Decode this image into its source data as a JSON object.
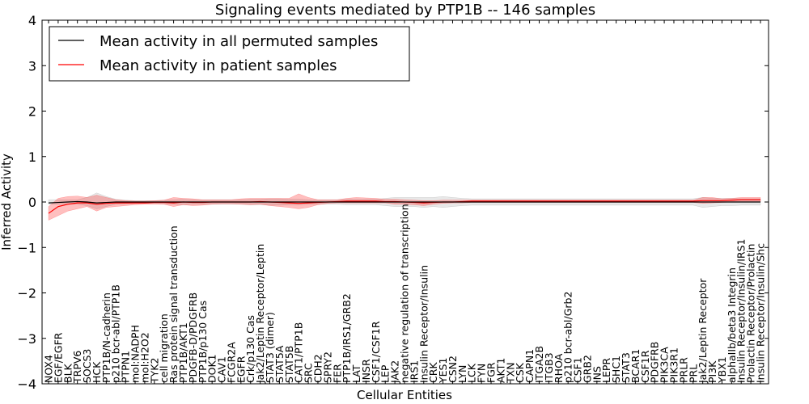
{
  "chart_data": {
    "type": "line",
    "title": "Signaling events mediated by PTP1B -- 146 samples",
    "xlabel": "Cellular Entities",
    "ylabel": "Inferred Activity",
    "ylim": [
      -4,
      4
    ],
    "yticks": [
      -4,
      -3,
      -2,
      -1,
      0,
      1,
      2,
      3,
      4
    ],
    "grid": false,
    "legend_position": "top-left",
    "categories": [
      "NOX4",
      "EGF/EGFR",
      "BLK",
      "TRPV6",
      "SOCS3",
      "HCK",
      "PTP1B/N-cadherin",
      "p210 bcr-abl/PTP1B",
      "PTPN1",
      "mol:NADPH",
      "mol:H2O2",
      "TYK2",
      "cell migration",
      "Ras protein signal transduction",
      "PTP1B/AKT1",
      "PDGFB-D/PDGFRB",
      "PTP1B/p130 Cas",
      "DOK1",
      "CAV1",
      "FCGR2A",
      "EGFR",
      "Crk/p130 Cas",
      "Jak2/Leptin Receptor/Leptin",
      "STAT3 (dimer)",
      "STAT5A",
      "STAT5B",
      "CAT1/PTP1B",
      "SRC",
      "CDH2",
      "SPRY2",
      "FER",
      "PTP1B/IRS1/GRB2",
      "LAT",
      "INSR",
      "CSF1/CSF1R",
      "LEP",
      "JAK2",
      "negative regulation of transcription",
      "IRS1",
      "Insulin Receptor/Insulin",
      "CRK",
      "YES1",
      "CSN2",
      "LYN",
      "LCK",
      "FYN",
      "FGR",
      "AKT1",
      "TXN",
      "CSK",
      "CAPN1",
      "ITGA2B",
      "ITGB3",
      "RHOA",
      "p210 bcr-abl/Grb2",
      "CSF1",
      "GRB2",
      "INS",
      "LEPR",
      "SHC1",
      "STAT3",
      "BCAR1",
      "CSF1R",
      "PDGFRB",
      "PIK3CA",
      "PIK3R1",
      "PRLR",
      "PRL",
      "Jak2/Leptin Receptor",
      "PI3K",
      "YBX1",
      "alphaIIb/beta3 Integrin",
      "Insulin Receptor/Insulin/IRS1",
      "Prolactin Receptor/Prolactin",
      "Insulin Receptor/Insulin/Shc"
    ],
    "series": [
      {
        "name": "Mean activity in all permuted samples",
        "color": "#000000",
        "values": [
          -0.02,
          -0.01,
          0.0,
          0.01,
          0.0,
          -0.02,
          -0.01,
          0.0,
          0.0,
          0.0,
          0.0,
          0.0,
          0.0,
          0.0,
          0.0,
          0.0,
          0.0,
          0.0,
          0.0,
          0.0,
          0.0,
          0.0,
          0.0,
          0.0,
          0.0,
          0.0,
          0.0,
          0.0,
          0.0,
          0.0,
          0.0,
          0.0,
          0.0,
          0.0,
          0.0,
          0.0,
          0.0,
          0.0,
          0.0,
          0.0,
          0.0,
          0.0,
          0.0,
          0.0,
          0.0,
          0.0,
          0.0,
          0.0,
          0.0,
          0.0,
          0.0,
          0.0,
          0.0,
          0.0,
          0.0,
          0.0,
          0.0,
          0.0,
          0.0,
          0.0,
          0.0,
          0.0,
          0.0,
          0.0,
          0.0,
          0.0,
          0.0,
          0.0,
          0.0,
          0.0,
          0.0,
          0.0,
          0.0,
          0.0,
          0.0
        ],
        "band_lower": [
          -0.05,
          -0.05,
          -0.05,
          -0.05,
          -0.08,
          -0.15,
          -0.1,
          -0.05,
          -0.04,
          -0.03,
          -0.03,
          -0.03,
          -0.04,
          -0.05,
          -0.06,
          -0.05,
          -0.05,
          -0.05,
          -0.05,
          -0.05,
          -0.05,
          -0.06,
          -0.06,
          -0.07,
          -0.07,
          -0.06,
          -0.06,
          -0.05,
          -0.05,
          -0.05,
          -0.05,
          -0.06,
          -0.06,
          -0.06,
          -0.06,
          -0.08,
          -0.1,
          -0.1,
          -0.1,
          -0.12,
          -0.1,
          -0.12,
          -0.1,
          -0.08,
          -0.07,
          -0.07,
          -0.07,
          -0.07,
          -0.07,
          -0.07,
          -0.07,
          -0.07,
          -0.07,
          -0.07,
          -0.07,
          -0.07,
          -0.07,
          -0.07,
          -0.07,
          -0.07,
          -0.07,
          -0.07,
          -0.07,
          -0.07,
          -0.07,
          -0.07,
          -0.07,
          -0.07,
          -0.12,
          -0.1,
          -0.08,
          -0.08,
          -0.07,
          -0.07,
          -0.07
        ],
        "band_upper": [
          0.05,
          0.05,
          0.05,
          0.05,
          0.1,
          0.2,
          0.12,
          0.06,
          0.04,
          0.03,
          0.03,
          0.03,
          0.04,
          0.05,
          0.06,
          0.05,
          0.05,
          0.05,
          0.05,
          0.05,
          0.05,
          0.06,
          0.06,
          0.07,
          0.07,
          0.06,
          0.06,
          0.05,
          0.05,
          0.05,
          0.05,
          0.06,
          0.06,
          0.06,
          0.06,
          0.08,
          0.1,
          0.1,
          0.1,
          0.1,
          0.1,
          0.12,
          0.1,
          0.08,
          0.07,
          0.07,
          0.07,
          0.07,
          0.07,
          0.07,
          0.07,
          0.07,
          0.07,
          0.07,
          0.07,
          0.07,
          0.07,
          0.07,
          0.07,
          0.07,
          0.07,
          0.07,
          0.07,
          0.07,
          0.07,
          0.07,
          0.07,
          0.07,
          0.1,
          0.08,
          0.08,
          0.08,
          0.07,
          0.07,
          0.07
        ]
      },
      {
        "name": "Mean activity in patient samples",
        "color": "#ff0000",
        "values": [
          -0.25,
          -0.1,
          -0.05,
          -0.02,
          -0.02,
          -0.05,
          -0.03,
          -0.02,
          -0.02,
          -0.02,
          -0.02,
          -0.01,
          -0.01,
          -0.02,
          0.0,
          -0.01,
          -0.01,
          0.0,
          0.0,
          0.0,
          0.0,
          0.0,
          0.01,
          0.0,
          -0.01,
          -0.02,
          -0.03,
          -0.02,
          -0.01,
          0.0,
          0.01,
          0.02,
          0.02,
          0.02,
          0.02,
          0.01,
          0.01,
          0.0,
          -0.01,
          -0.02,
          -0.01,
          0.0,
          0.0,
          0.01,
          0.02,
          0.02,
          0.02,
          0.02,
          0.02,
          0.02,
          0.02,
          0.02,
          0.02,
          0.02,
          0.02,
          0.02,
          0.02,
          0.02,
          0.02,
          0.02,
          0.02,
          0.02,
          0.02,
          0.02,
          0.02,
          0.02,
          0.02,
          0.02,
          0.03,
          0.03,
          0.03,
          0.04,
          0.05,
          0.05,
          0.05
        ],
        "band_lower": [
          -0.4,
          -0.3,
          -0.2,
          -0.15,
          -0.1,
          -0.2,
          -0.12,
          -0.1,
          -0.08,
          -0.06,
          -0.05,
          -0.05,
          -0.05,
          -0.1,
          -0.06,
          -0.08,
          -0.07,
          -0.05,
          -0.04,
          -0.04,
          -0.05,
          -0.06,
          -0.05,
          -0.08,
          -0.1,
          -0.12,
          -0.15,
          -0.12,
          -0.06,
          -0.03,
          -0.02,
          -0.02,
          -0.02,
          -0.02,
          -0.02,
          -0.02,
          -0.05,
          -0.05,
          -0.06,
          -0.08,
          -0.05,
          -0.03,
          -0.02,
          -0.02,
          -0.01,
          -0.01,
          -0.01,
          -0.01,
          -0.01,
          -0.01,
          -0.01,
          -0.01,
          -0.01,
          -0.01,
          -0.01,
          -0.01,
          -0.01,
          -0.01,
          -0.01,
          -0.01,
          -0.01,
          -0.01,
          -0.01,
          -0.01,
          -0.01,
          -0.01,
          -0.01,
          -0.01,
          -0.03,
          -0.02,
          -0.01,
          0.0,
          0.0,
          0.0,
          0.0
        ],
        "band_upper": [
          -0.1,
          0.08,
          0.12,
          0.13,
          0.1,
          0.15,
          0.1,
          0.05,
          0.03,
          0.02,
          0.02,
          0.03,
          0.04,
          0.1,
          0.08,
          0.07,
          0.05,
          0.05,
          0.05,
          0.05,
          0.07,
          0.08,
          0.08,
          0.08,
          0.08,
          0.08,
          0.18,
          0.1,
          0.05,
          0.05,
          0.05,
          0.08,
          0.1,
          0.09,
          0.08,
          0.06,
          0.06,
          0.05,
          0.04,
          0.03,
          0.03,
          0.04,
          0.04,
          0.04,
          0.04,
          0.04,
          0.04,
          0.04,
          0.04,
          0.04,
          0.04,
          0.04,
          0.04,
          0.04,
          0.04,
          0.04,
          0.04,
          0.04,
          0.04,
          0.04,
          0.04,
          0.04,
          0.04,
          0.04,
          0.04,
          0.04,
          0.04,
          0.04,
          0.1,
          0.1,
          0.07,
          0.08,
          0.1,
          0.1,
          0.1
        ]
      }
    ]
  }
}
